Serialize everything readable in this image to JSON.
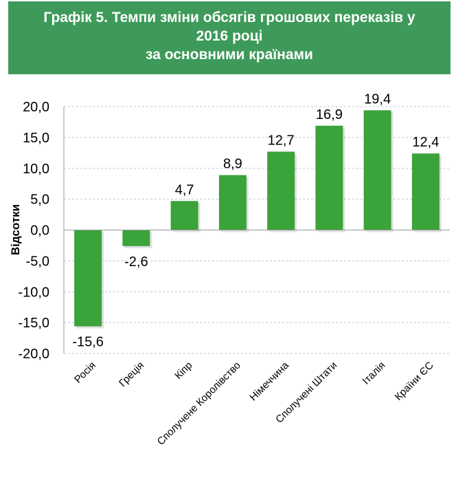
{
  "title": {
    "line1": "Графік 5. Темпи зміни  обсягів грошових переказів у",
    "line2": "2016 році",
    "line3": "за основними країнами"
  },
  "colors": {
    "bar": "#3aa33a",
    "header": "#3e9a5a",
    "grid": "#c8d2e6"
  },
  "chart_data": {
    "type": "bar",
    "categories": [
      "Росія",
      "Греція",
      "Кіпр",
      "Сполучене Королівство",
      "Німеччина",
      "Сполучені Штати",
      "Італія",
      "Країни ЄС"
    ],
    "values": [
      -15.6,
      -2.6,
      4.7,
      8.9,
      12.7,
      16.9,
      19.4,
      12.4
    ],
    "value_labels": [
      "-15,6",
      "-2,6",
      "4,7",
      "8,9",
      "12,7",
      "16,9",
      "19,4",
      "12,4"
    ],
    "ylabel": "Відсотки",
    "xlabel": "",
    "ylim": [
      -20,
      20
    ],
    "yticks": [
      20,
      15,
      10,
      5,
      0,
      -5,
      -10,
      -15,
      -20
    ],
    "ytick_labels": [
      "20,0",
      "15,0",
      "10,0",
      "5,0",
      "0,0",
      "-5,0",
      "-10,0",
      "-15,0",
      "-20,0"
    ],
    "grid": true,
    "legend": "none"
  }
}
